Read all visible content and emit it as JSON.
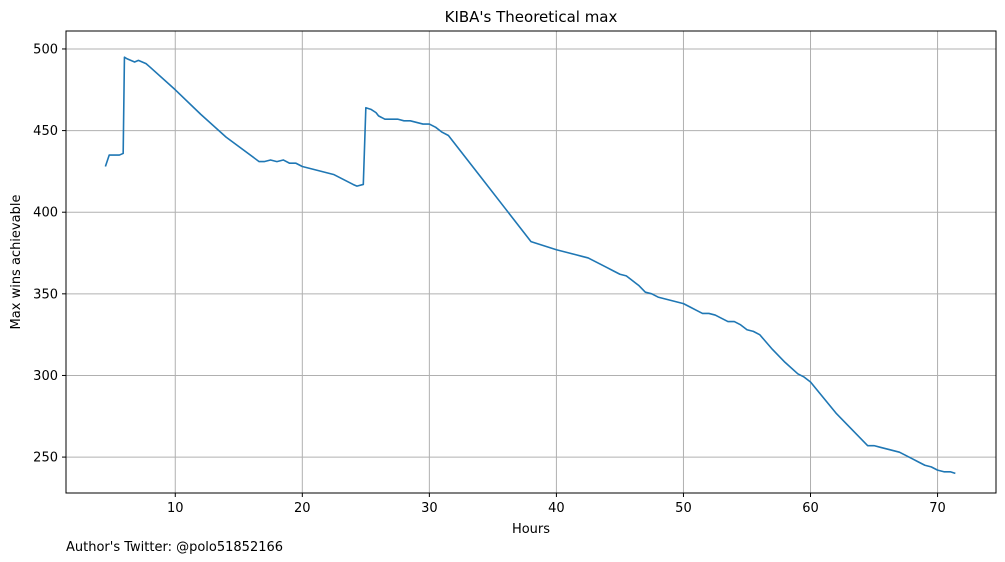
{
  "chart_data": {
    "type": "line",
    "title": "KIBA's Theoretical max",
    "xlabel": "Hours",
    "ylabel": "Max wins achievable",
    "xlim": [
      1.4,
      74.6
    ],
    "ylim": [
      228,
      511
    ],
    "xticks": [
      10,
      20,
      30,
      40,
      50,
      60,
      70
    ],
    "yticks": [
      250,
      300,
      350,
      400,
      450,
      500
    ],
    "grid": true,
    "legend": "none",
    "series": [
      {
        "color": "#1f77b4",
        "x": [
          4.5,
          4.8,
          5.2,
          5.6,
          5.9,
          6.0,
          6.2,
          6.5,
          6.8,
          7.1,
          7.4,
          7.7,
          8.0,
          10.0,
          12.0,
          14.0,
          16.6,
          17.0,
          17.5,
          18.0,
          18.5,
          19.0,
          19.5,
          20.0,
          20.5,
          21.0,
          21.5,
          22.0,
          22.5,
          23.0,
          23.5,
          24.0,
          24.3,
          24.8,
          25.0,
          25.4,
          25.8,
          26.0,
          26.5,
          27.0,
          27.5,
          28.0,
          28.5,
          29.0,
          29.5,
          30.0,
          30.5,
          31.0,
          31.5,
          34.0,
          36.0,
          38.0,
          40.0,
          40.5,
          41.0,
          41.5,
          42.0,
          42.5,
          43.0,
          43.5,
          44.0,
          44.5,
          45.0,
          45.5,
          46.0,
          46.5,
          47.0,
          47.5,
          48.0,
          48.5,
          49.0,
          49.5,
          50.0,
          50.5,
          51.0,
          51.5,
          52.0,
          52.5,
          53.0,
          53.5,
          54.0,
          54.5,
          55.0,
          55.5,
          56.0,
          57.0,
          58.0,
          59.0,
          59.5,
          60.0,
          62.0,
          64.5,
          65.0,
          65.5,
          66.0,
          66.5,
          67.0,
          67.5,
          68.0,
          68.5,
          69.0,
          69.5,
          70.0,
          70.5,
          71.0,
          71.4
        ],
        "values": [
          428,
          435,
          435,
          435,
          436,
          495,
          494,
          493,
          492,
          493,
          492,
          491,
          489,
          475,
          460,
          446,
          431,
          431,
          432,
          431,
          432,
          430,
          430,
          428,
          427,
          426,
          425,
          424,
          423,
          421,
          419,
          417,
          416,
          417,
          464,
          463,
          461,
          459,
          457,
          457,
          457,
          456,
          456,
          455,
          454,
          454,
          452,
          449,
          447,
          422,
          402,
          382,
          377,
          376,
          375,
          374,
          373,
          372,
          370,
          368,
          366,
          364,
          362,
          361,
          358,
          355,
          351,
          350,
          348,
          347,
          346,
          345,
          344,
          342,
          340,
          338,
          338,
          337,
          335,
          333,
          333,
          331,
          328,
          327,
          325,
          316,
          308,
          301,
          299,
          296,
          277,
          257,
          257,
          256,
          255,
          254,
          253,
          251,
          249,
          247,
          245,
          244,
          242,
          241,
          241,
          240
        ]
      }
    ]
  },
  "footnote": "Author's Twitter: @polo51852166"
}
